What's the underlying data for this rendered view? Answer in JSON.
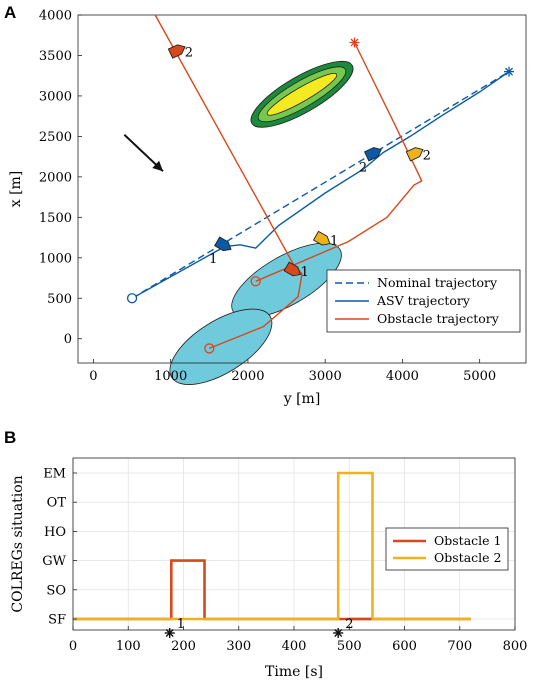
{
  "panels": {
    "a": {
      "letter": "A"
    },
    "b": {
      "letter": "B"
    }
  },
  "colors": {
    "asv": "#0a5aa8",
    "obstacle_line": "#d9481c",
    "obstacle1": "#d9481c",
    "obstacle2": "#edb21d",
    "ellipse_fill": "#6fcbdc",
    "current_arrow": "#111111"
  },
  "icons": {
    "current_arrow": "current-direction-arrow-icon",
    "start_marker": "start-circle-icon",
    "goal_marker": "goal-star-icon"
  },
  "chart_data": [
    {
      "type": "line",
      "xlabel": "y [m]",
      "ylabel": "x [m]",
      "xlim": [
        -200,
        5600
      ],
      "ylim": [
        -300,
        4000
      ],
      "xticks": [
        0,
        1000,
        2000,
        3000,
        4000,
        5000
      ],
      "yticks": [
        0,
        500,
        1000,
        1500,
        2000,
        2500,
        3000,
        3500,
        4000
      ],
      "legend_position": "bottom-right",
      "legend": [
        "Nominal trajectory",
        "ASV trajectory",
        "Obstacle trajectory"
      ],
      "series": [
        {
          "name": "Nominal trajectory",
          "style": "dashed",
          "color": "#0a5aa8",
          "points": [
            [
              500,
              500
            ],
            [
              5380,
              3300
            ]
          ]
        },
        {
          "name": "ASV trajectory",
          "style": "solid",
          "color": "#0a5aa8",
          "points": [
            [
              500,
              500
            ],
            [
              1700,
              1140
            ],
            [
              1900,
              1160
            ],
            [
              2100,
              1120
            ],
            [
              2400,
              1400
            ],
            [
              3000,
              1800
            ],
            [
              3500,
              2100
            ],
            [
              3750,
              2300
            ],
            [
              4100,
              2500
            ],
            [
              4500,
              2750
            ],
            [
              5000,
              3050
            ],
            [
              5380,
              3300
            ]
          ]
        },
        {
          "name": "Obstacle trajectory",
          "style": "solid",
          "color": "#d9481c",
          "points": [
            [
              800,
              4000
            ],
            [
              2600,
              900
            ],
            [
              2700,
              800
            ],
            [
              2650,
              520
            ],
            [
              2200,
              150
            ],
            [
              1500,
              -120
            ]
          ]
        },
        {
          "name": "Obstacle trajectory",
          "style": "solid",
          "color": "#d9481c",
          "points": [
            [
              3380,
              3660
            ],
            [
              3900,
              2650
            ],
            [
              4200,
              2050
            ],
            [
              4250,
              1950
            ],
            [
              4150,
              1900
            ],
            [
              3800,
              1500
            ],
            [
              3300,
              1200
            ],
            [
              2100,
              710
            ]
          ]
        }
      ],
      "vessels": [
        {
          "label": "2",
          "color": "#d9481c",
          "point": [
            1080,
            3560
          ]
        },
        {
          "label": "1",
          "color": "#d9481c",
          "point": [
            2580,
            850
          ]
        },
        {
          "label": "2",
          "color": "#0a5aa8",
          "point": [
            3620,
            2290
          ]
        },
        {
          "label": "1",
          "color": "#0a5aa8",
          "point": [
            1680,
            1160
          ]
        },
        {
          "label": "2",
          "color": "#edb21d",
          "point": [
            4160,
            2290
          ]
        },
        {
          "label": "1",
          "color": "#edb21d",
          "point": [
            2960,
            1230
          ]
        }
      ],
      "markers": {
        "start": [
          500,
          500
        ],
        "asv_goal": [
          5380,
          3300
        ],
        "obstacle_goal": [
          3380,
          3660
        ],
        "obstacle_starts": [
          [
            2100,
            710
          ],
          [
            1500,
            -120
          ]
        ]
      },
      "ellipses": [
        {
          "center": [
            2500,
            720
          ],
          "semi_axes": [
            800,
            300
          ],
          "angle_deg": 30
        },
        {
          "center": [
            1650,
            -100
          ],
          "semi_axes": [
            750,
            320
          ],
          "angle_deg": 32
        }
      ],
      "hazard_contours": {
        "center": [
          2700,
          3020
        ],
        "levels": 3,
        "colors": [
          "#1c8a3c",
          "#78c850",
          "#f5ea21"
        ]
      },
      "current_arrow": {
        "from": [
          400,
          2520
        ],
        "to": [
          900,
          2070
        ]
      }
    },
    {
      "type": "line",
      "xlabel": "Time [s]",
      "ylabel": "COLREGs situation",
      "xlim": [
        0,
        800
      ],
      "xticks": [
        0,
        100,
        200,
        300,
        400,
        500,
        600,
        700,
        800
      ],
      "categories": [
        "SF",
        "SO",
        "GW",
        "HO",
        "OT",
        "EM"
      ],
      "legend_position": "right",
      "series": [
        {
          "name": "Obstacle 1",
          "color": "#d9481c",
          "points": [
            [
              0,
              "SF"
            ],
            [
              178,
              "SF"
            ],
            [
              178,
              "GW"
            ],
            [
              238,
              "GW"
            ],
            [
              238,
              "SF"
            ],
            [
              720,
              "SF"
            ]
          ]
        },
        {
          "name": "Obstacle 2",
          "color": "#edb21d",
          "points": [
            [
              0,
              "SF"
            ],
            [
              480,
              "SF"
            ],
            [
              480,
              "EM"
            ],
            [
              542,
              "EM"
            ],
            [
              542,
              "SF"
            ],
            [
              720,
              "SF"
            ]
          ]
        }
      ],
      "event_markers": [
        {
          "label": "1",
          "time": 175
        },
        {
          "label": "2",
          "time": 480
        }
      ]
    }
  ]
}
